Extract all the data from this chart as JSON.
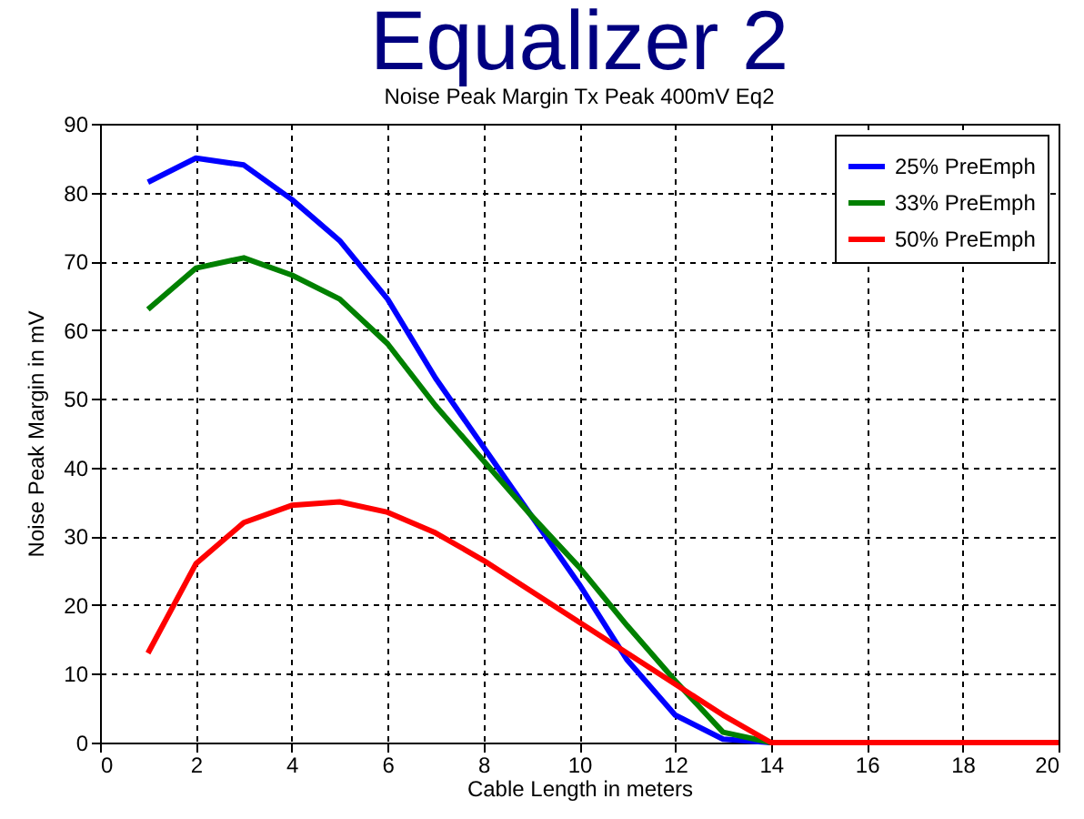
{
  "chart_data": {
    "type": "line",
    "title": "Equalizer 2",
    "subtitle": "Noise Peak Margin Tx Peak 400mV Eq2",
    "xlabel": "Cable Length in meters",
    "ylabel": "Noise Peak Margin in mV",
    "x": [
      1,
      2,
      3,
      4,
      5,
      6,
      7,
      8,
      9,
      10,
      11,
      12,
      13,
      14,
      15,
      16,
      17,
      18,
      19,
      20
    ],
    "series": [
      {
        "name": "25% PreEmph",
        "color": "#0000ff",
        "values": [
          81.5,
          85,
          84,
          79,
          73,
          64.5,
          53,
          43,
          33,
          23,
          12,
          4,
          0.5,
          0,
          null,
          null,
          null,
          null,
          null,
          null
        ]
      },
      {
        "name": "33% PreEmph",
        "color": "#008000",
        "values": [
          63,
          69,
          70.5,
          68,
          64.5,
          58,
          49,
          41,
          33,
          25.5,
          17,
          9,
          1.5,
          0,
          null,
          null,
          null,
          null,
          null,
          null
        ]
      },
      {
        "name": "50% PreEmph",
        "color": "#ff0000",
        "values": [
          13,
          26,
          32,
          34.5,
          35,
          33.5,
          30.5,
          26.5,
          22,
          17.5,
          13,
          8.5,
          4,
          0,
          0,
          0,
          0,
          0,
          0,
          0
        ]
      }
    ],
    "xlim": [
      0,
      20
    ],
    "xticks": [
      0,
      2,
      4,
      6,
      8,
      10,
      12,
      14,
      16,
      18,
      20
    ],
    "ylim": [
      0,
      90
    ],
    "yticks": [
      0,
      10,
      20,
      30,
      40,
      50,
      60,
      70,
      80,
      90
    ],
    "grid": true,
    "legend": "top right"
  }
}
